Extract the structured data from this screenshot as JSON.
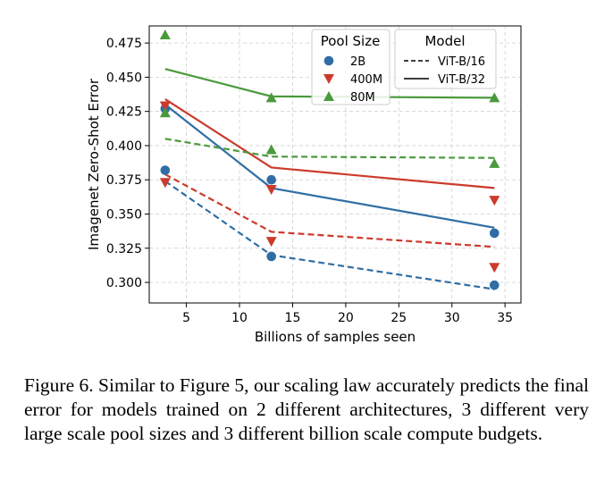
{
  "chart_data": {
    "type": "scatter",
    "xlabel": "Billions of samples seen",
    "ylabel": "Imagenet Zero-Shot Error",
    "xlim": [
      1.5,
      36.5
    ],
    "ylim": [
      0.285,
      0.4875
    ],
    "xticks": [
      5,
      10,
      15,
      20,
      25,
      30,
      35
    ],
    "yticks": [
      0.3,
      0.325,
      0.35,
      0.375,
      0.4,
      0.425,
      0.45,
      0.475
    ],
    "xtick_labels": [
      "5",
      "10",
      "15",
      "20",
      "25",
      "30",
      "35"
    ],
    "ytick_labels": [
      "0.300",
      "0.325",
      "0.350",
      "0.375",
      "0.400",
      "0.425",
      "0.450",
      "0.475"
    ],
    "grid": true,
    "grid_style": "dashed",
    "legend_position": "top-right",
    "legend": {
      "pool_title": "Pool Size",
      "pools": [
        {
          "key": "2B",
          "label": "2B",
          "color": "#2f6ea4",
          "marker": "circle"
        },
        {
          "key": "400M",
          "label": "400M",
          "color": "#cc3a2c",
          "marker": "triangle-down"
        },
        {
          "key": "80M",
          "label": "80M",
          "color": "#4a9a3c",
          "marker": "triangle-up"
        }
      ],
      "model_title": "Model",
      "models": [
        {
          "label": "ViT-B/16",
          "style": "dashed"
        },
        {
          "label": "ViT-B/32",
          "style": "solid"
        }
      ]
    },
    "points": [
      {
        "pool": "2B",
        "x": [
          3,
          13,
          34
        ],
        "y": [
          0.382,
          0.319,
          0.298
        ]
      },
      {
        "pool": "2B",
        "x": [
          3,
          13,
          34
        ],
        "y": [
          0.427,
          0.375,
          0.336
        ]
      },
      {
        "pool": "400M",
        "x": [
          3,
          13,
          34
        ],
        "y": [
          0.373,
          0.33,
          0.311
        ]
      },
      {
        "pool": "400M",
        "x": [
          3,
          13,
          34
        ],
        "y": [
          0.429,
          0.368,
          0.36
        ]
      },
      {
        "pool": "80M",
        "x": [
          3,
          13,
          34
        ],
        "y": [
          0.424,
          0.397,
          0.387
        ]
      },
      {
        "pool": "80M",
        "x": [
          3,
          13,
          34
        ],
        "y": [
          0.481,
          0.435,
          0.435
        ]
      }
    ],
    "fits": [
      {
        "pool": "2B",
        "model": "ViT-B/16",
        "style": "dashed",
        "x": [
          3,
          13,
          34
        ],
        "y": [
          0.374,
          0.32,
          0.295
        ]
      },
      {
        "pool": "2B",
        "model": "ViT-B/32",
        "style": "solid",
        "x": [
          3,
          13,
          34
        ],
        "y": [
          0.43,
          0.369,
          0.34
        ]
      },
      {
        "pool": "400M",
        "model": "ViT-B/16",
        "style": "dashed",
        "x": [
          3,
          13,
          34
        ],
        "y": [
          0.379,
          0.337,
          0.326
        ]
      },
      {
        "pool": "400M",
        "model": "ViT-B/32",
        "style": "solid",
        "x": [
          3,
          13,
          34
        ],
        "y": [
          0.434,
          0.384,
          0.369
        ]
      },
      {
        "pool": "80M",
        "model": "ViT-B/16",
        "style": "dashed",
        "x": [
          3,
          13,
          34
        ],
        "y": [
          0.405,
          0.392,
          0.391
        ]
      },
      {
        "pool": "80M",
        "model": "ViT-B/32",
        "style": "solid",
        "x": [
          3,
          13,
          34
        ],
        "y": [
          0.456,
          0.436,
          0.435
        ]
      }
    ]
  },
  "caption": "Figure 6. Similar to Figure 5, our scaling law accurately predicts the final error for models trained on 2 different architectures, 3 different very large scale pool sizes and 3 different billion scale compute budgets."
}
